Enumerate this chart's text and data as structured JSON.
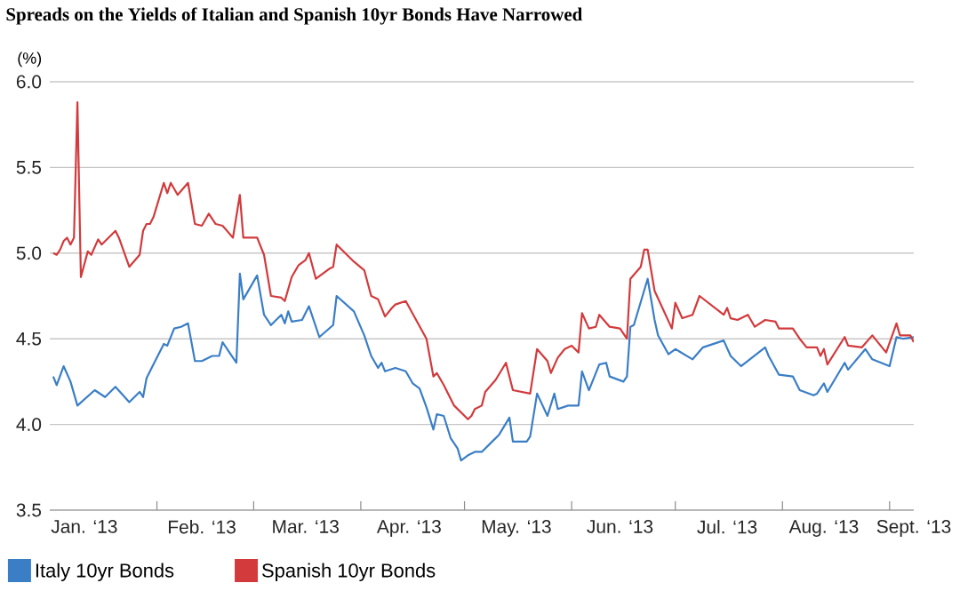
{
  "chart_data": {
    "type": "line",
    "title": "Spreads on the Yields of Italian and Spanish 10yr Bonds Have Narrowed",
    "ylabel": "(%)",
    "xlim": [
      "2013-01-01",
      "2013-09-08"
    ],
    "ylim": [
      3.5,
      6.0
    ],
    "xticks": [
      {
        "value": "2013-01-11",
        "label": "Jan. ‘13"
      },
      {
        "value": "2013-02-01",
        "label": null
      },
      {
        "value": "2013-02-14",
        "label": "Feb. ‘13"
      },
      {
        "value": "2013-03-01",
        "label": null
      },
      {
        "value": "2013-03-16",
        "label": "Mar. ‘13"
      },
      {
        "value": "2013-04-01",
        "label": null
      },
      {
        "value": "2013-04-15",
        "label": "Apr. ‘13"
      },
      {
        "value": "2013-05-01",
        "label": null
      },
      {
        "value": "2013-05-16",
        "label": "May. ‘13"
      },
      {
        "value": "2013-06-01",
        "label": null
      },
      {
        "value": "2013-06-15",
        "label": "Jun. ‘13"
      },
      {
        "value": "2013-07-01",
        "label": null
      },
      {
        "value": "2013-07-16",
        "label": "Jul. ‘13"
      },
      {
        "value": "2013-08-01",
        "label": null
      },
      {
        "value": "2013-08-13",
        "label": "Aug. ‘13"
      },
      {
        "value": "2013-09-01",
        "label": null
      },
      {
        "value": "2013-09-08",
        "label": "Sept. ‘13"
      }
    ],
    "yticks": [
      {
        "value": 3.5,
        "label": "3.5"
      },
      {
        "value": 4.0,
        "label": "4.0"
      },
      {
        "value": 4.5,
        "label": "4.5"
      },
      {
        "value": 5.0,
        "label": "5.0"
      },
      {
        "value": 5.5,
        "label": "5.5"
      },
      {
        "value": 6.0,
        "label": "6.0"
      }
    ],
    "grid": "y",
    "legend": "bottom",
    "series": [
      {
        "name": "Italy 10yr Bonds",
        "color": "#3a7ec6",
        "x": [
          "2013-01-02",
          "2013-01-03",
          "2013-01-05",
          "2013-01-07",
          "2013-01-09",
          "2013-01-14",
          "2013-01-17",
          "2013-01-20",
          "2013-01-24",
          "2013-01-27",
          "2013-01-28",
          "2013-01-29",
          "2013-01-31",
          "2013-02-03",
          "2013-02-04",
          "2013-02-06",
          "2013-02-08",
          "2013-02-10",
          "2013-02-12",
          "2013-02-14",
          "2013-02-17",
          "2013-02-19",
          "2013-02-20",
          "2013-02-24",
          "2013-02-25",
          "2013-02-26",
          "2013-03-02",
          "2013-03-04",
          "2013-03-06",
          "2013-03-09",
          "2013-03-10",
          "2013-03-11",
          "2013-03-12",
          "2013-03-15",
          "2013-03-17",
          "2013-03-20",
          "2013-03-24",
          "2013-03-25",
          "2013-03-30",
          "2013-04-02",
          "2013-04-04",
          "2013-04-06",
          "2013-04-07",
          "2013-04-08",
          "2013-04-11",
          "2013-04-14",
          "2013-04-16",
          "2013-04-18",
          "2013-04-20",
          "2013-04-22",
          "2013-04-23",
          "2013-04-25",
          "2013-04-27",
          "2013-04-29",
          "2013-04-30",
          "2013-05-02",
          "2013-05-04",
          "2013-05-06",
          "2013-05-09",
          "2013-05-11",
          "2013-05-14",
          "2013-05-15",
          "2013-05-19",
          "2013-05-20",
          "2013-05-22",
          "2013-05-25",
          "2013-05-27",
          "2013-05-28",
          "2013-05-31",
          "2013-06-03",
          "2013-06-04",
          "2013-06-06",
          "2013-06-09",
          "2013-06-11",
          "2013-06-12",
          "2013-06-16",
          "2013-06-17",
          "2013-06-18",
          "2013-06-19",
          "2013-06-23",
          "2013-06-25",
          "2013-06-26",
          "2013-06-29",
          "2013-07-01",
          "2013-07-06",
          "2013-07-09",
          "2013-07-15",
          "2013-07-17",
          "2013-07-20",
          "2013-07-27",
          "2013-07-28",
          "2013-07-31",
          "2013-08-04",
          "2013-08-06",
          "2013-08-10",
          "2013-08-11",
          "2013-08-13",
          "2013-08-14",
          "2013-08-19",
          "2013-08-20",
          "2013-08-25",
          "2013-08-27",
          "2013-09-01",
          "2013-09-03",
          "2013-09-05",
          "2013-09-08"
        ],
        "values": [
          4.28,
          4.23,
          4.34,
          4.25,
          4.11,
          4.2,
          4.16,
          4.22,
          4.13,
          4.19,
          4.16,
          4.27,
          4.35,
          4.47,
          4.46,
          4.56,
          4.57,
          4.59,
          4.37,
          4.37,
          4.4,
          4.4,
          4.48,
          4.36,
          4.88,
          4.73,
          4.87,
          4.64,
          4.58,
          4.64,
          4.59,
          4.66,
          4.6,
          4.61,
          4.69,
          4.51,
          4.58,
          4.75,
          4.66,
          4.52,
          4.4,
          4.33,
          4.36,
          4.31,
          4.33,
          4.31,
          4.24,
          4.21,
          4.1,
          3.97,
          4.06,
          4.05,
          3.92,
          3.86,
          3.79,
          3.82,
          3.84,
          3.84,
          3.9,
          3.94,
          4.04,
          3.9,
          3.9,
          3.93,
          4.18,
          4.05,
          4.18,
          4.09,
          4.11,
          4.11,
          4.31,
          4.2,
          4.35,
          4.36,
          4.28,
          4.25,
          4.28,
          4.57,
          4.58,
          4.85,
          4.61,
          4.52,
          4.41,
          4.44,
          4.38,
          4.45,
          4.49,
          4.4,
          4.34,
          4.45,
          4.4,
          4.29,
          4.28,
          4.2,
          4.17,
          4.18,
          4.24,
          4.19,
          4.36,
          4.32,
          4.44,
          4.38,
          4.34,
          4.51,
          4.5,
          4.51
        ]
      },
      {
        "name": "Spanish 10yr Bonds",
        "color": "#d23a3c",
        "x": [
          "2013-01-02",
          "2013-01-03",
          "2013-01-04",
          "2013-01-05",
          "2013-01-06",
          "2013-01-07",
          "2013-01-08",
          "2013-01-09",
          "2013-01-10",
          "2013-01-12",
          "2013-01-13",
          "2013-01-15",
          "2013-01-16",
          "2013-01-20",
          "2013-01-21",
          "2013-01-24",
          "2013-01-27",
          "2013-01-28",
          "2013-01-29",
          "2013-01-30",
          "2013-01-31",
          "2013-02-03",
          "2013-02-04",
          "2013-02-05",
          "2013-02-07",
          "2013-02-10",
          "2013-02-12",
          "2013-02-14",
          "2013-02-16",
          "2013-02-18",
          "2013-02-20",
          "2013-02-23",
          "2013-02-25",
          "2013-02-26",
          "2013-03-02",
          "2013-03-04",
          "2013-03-06",
          "2013-03-09",
          "2013-03-10",
          "2013-03-12",
          "2013-03-14",
          "2013-03-16",
          "2013-03-17",
          "2013-03-19",
          "2013-03-23",
          "2013-03-24",
          "2013-03-25",
          "2013-03-30",
          "2013-04-02",
          "2013-04-04",
          "2013-04-06",
          "2013-04-07",
          "2013-04-08",
          "2013-04-10",
          "2013-04-11",
          "2013-04-14",
          "2013-04-20",
          "2013-04-22",
          "2013-04-23",
          "2013-04-25",
          "2013-04-28",
          "2013-05-02",
          "2013-05-03",
          "2013-05-04",
          "2013-05-06",
          "2013-05-07",
          "2013-05-10",
          "2013-05-13",
          "2013-05-15",
          "2013-05-20",
          "2013-05-22",
          "2013-05-25",
          "2013-05-26",
          "2013-05-28",
          "2013-05-30",
          "2013-06-01",
          "2013-06-03",
          "2013-06-04",
          "2013-06-06",
          "2013-06-08",
          "2013-06-09",
          "2013-06-12",
          "2013-06-15",
          "2013-06-17",
          "2013-06-18",
          "2013-06-21",
          "2013-06-22",
          "2013-06-23",
          "2013-06-25",
          "2013-06-30",
          "2013-07-01",
          "2013-07-03",
          "2013-07-06",
          "2013-07-08",
          "2013-07-15",
          "2013-07-16",
          "2013-07-17",
          "2013-07-19",
          "2013-07-22",
          "2013-07-24",
          "2013-07-27",
          "2013-07-30",
          "2013-07-31",
          "2013-08-04",
          "2013-08-06",
          "2013-08-08",
          "2013-08-11",
          "2013-08-12",
          "2013-08-13",
          "2013-08-14",
          "2013-08-19",
          "2013-08-20",
          "2013-08-24",
          "2013-08-27",
          "2013-08-31",
          "2013-09-03",
          "2013-09-04",
          "2013-09-07",
          "2013-09-08"
        ],
        "values": [
          5.0,
          4.99,
          5.02,
          5.07,
          5.09,
          5.05,
          5.09,
          5.88,
          4.86,
          5.01,
          4.99,
          5.08,
          5.05,
          5.13,
          5.09,
          4.92,
          4.99,
          5.13,
          5.17,
          5.17,
          5.21,
          5.41,
          5.35,
          5.41,
          5.34,
          5.41,
          5.17,
          5.16,
          5.23,
          5.17,
          5.16,
          5.09,
          5.34,
          5.09,
          5.09,
          4.99,
          4.75,
          4.74,
          4.72,
          4.86,
          4.93,
          4.96,
          5.0,
          4.85,
          4.91,
          4.92,
          5.05,
          4.95,
          4.9,
          4.75,
          4.73,
          4.68,
          4.63,
          4.68,
          4.7,
          4.72,
          4.5,
          4.28,
          4.3,
          4.23,
          4.11,
          4.03,
          4.05,
          4.09,
          4.11,
          4.19,
          4.26,
          4.36,
          4.2,
          4.18,
          4.44,
          4.37,
          4.3,
          4.39,
          4.44,
          4.46,
          4.42,
          4.65,
          4.56,
          4.57,
          4.64,
          4.57,
          4.56,
          4.5,
          4.85,
          4.92,
          5.02,
          5.02,
          4.78,
          4.56,
          4.71,
          4.62,
          4.64,
          4.75,
          4.64,
          4.68,
          4.62,
          4.61,
          4.64,
          4.57,
          4.61,
          4.6,
          4.56,
          4.56,
          4.5,
          4.45,
          4.45,
          4.4,
          4.44,
          4.35,
          4.51,
          4.46,
          4.45,
          4.52,
          4.42,
          4.59,
          4.52,
          4.52,
          4.48
        ]
      }
    ]
  }
}
